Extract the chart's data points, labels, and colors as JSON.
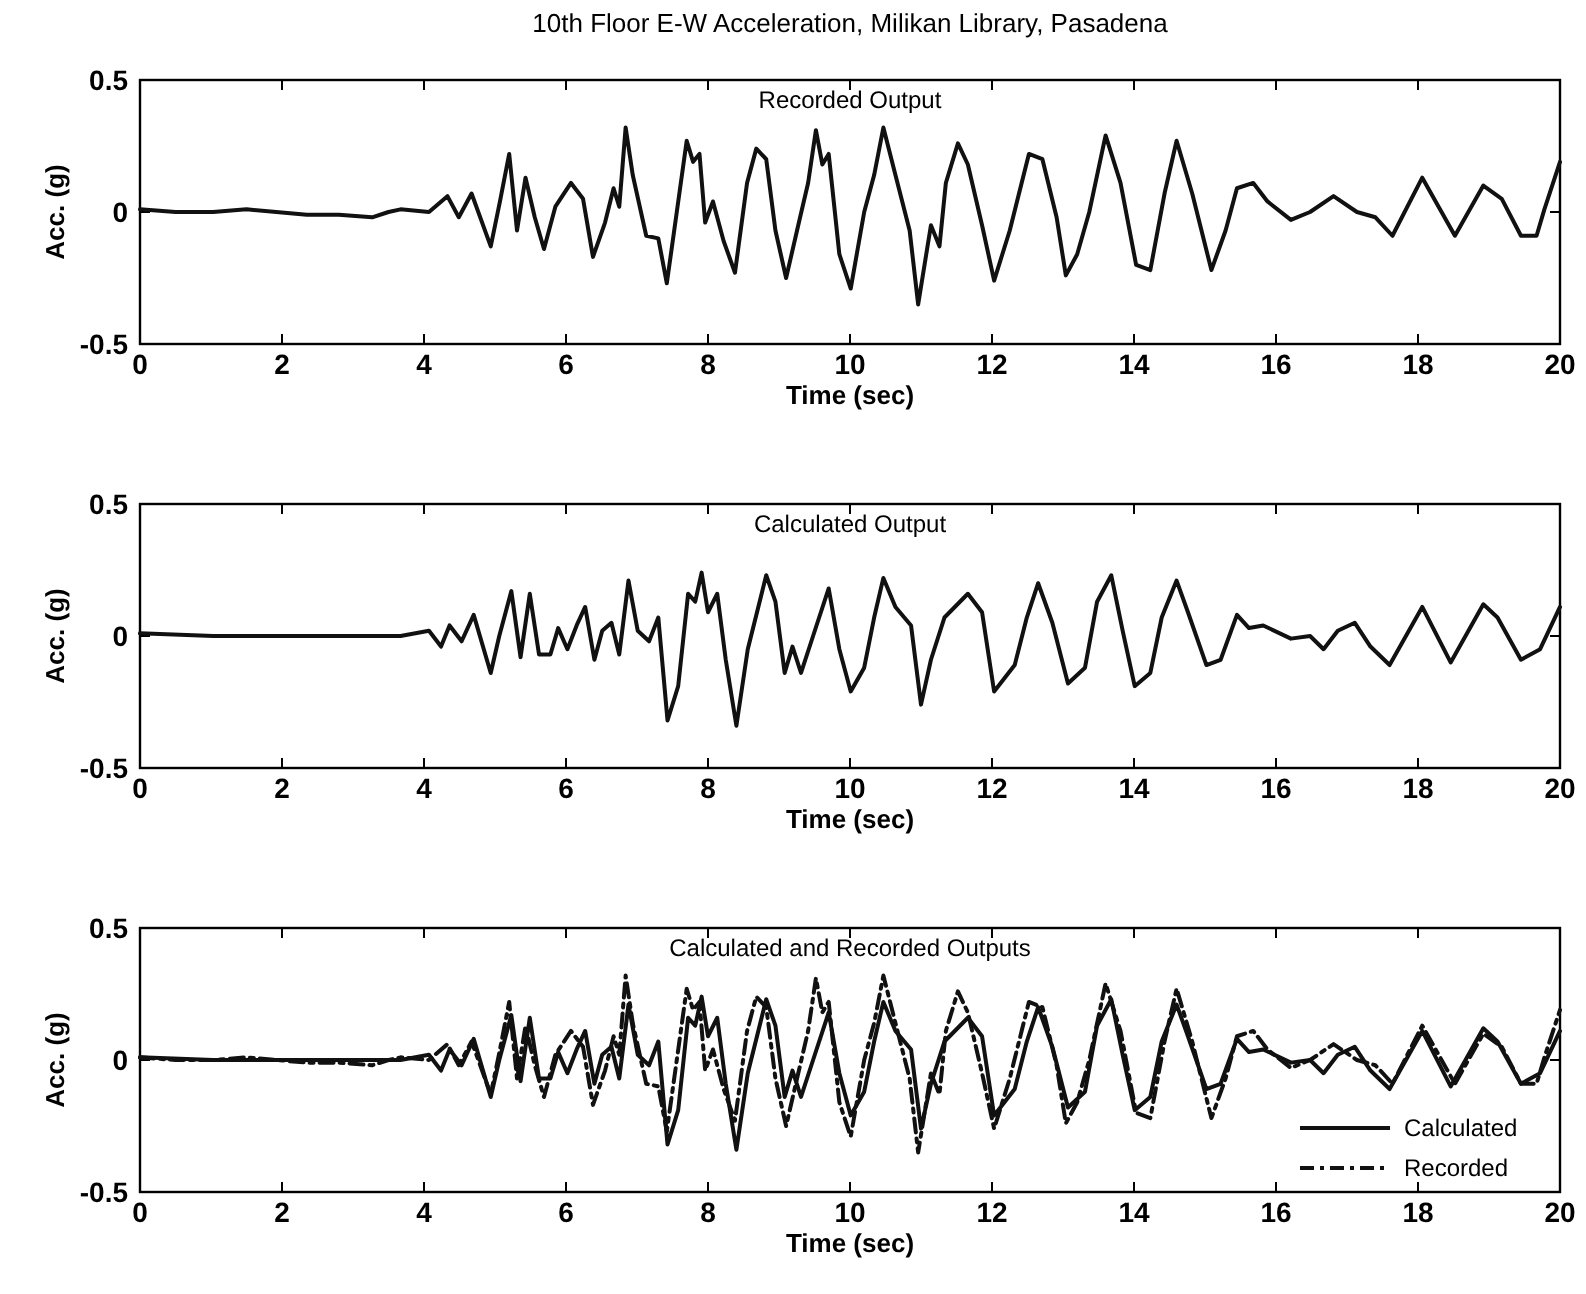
{
  "chart_data": [
    {
      "type": "line",
      "title": "10th Floor E-W Acceleration, Milikan Library, Pasadena",
      "subtitle": "Recorded Output",
      "xlabel": "Time (sec)",
      "ylabel": "Acc. (g)",
      "xlim": [
        0,
        20
      ],
      "ylim": [
        -0.5,
        0.5
      ],
      "xticks": [
        0,
        2,
        4,
        6,
        8,
        10,
        12,
        14,
        16,
        18,
        20
      ],
      "yticks": [
        -0.5,
        0,
        0.5
      ],
      "grid": false,
      "legend": false,
      "marker": "none",
      "series": [
        {
          "color": "#111111",
          "line_style": "solid",
          "x": [
            0,
            0.5,
            1.03,
            1.5,
            2.35,
            2.8,
            3.27,
            3.5,
            3.67,
            4.07,
            4.33,
            4.49,
            4.67,
            4.94,
            5.07,
            5.2,
            5.31,
            5.43,
            5.56,
            5.69,
            5.85,
            6.07,
            6.24,
            6.38,
            6.55,
            6.67,
            6.75,
            6.84,
            6.94,
            7.13,
            7.3,
            7.42,
            7.55,
            7.7,
            7.79,
            7.88,
            7.96,
            8.07,
            8.22,
            8.38,
            8.55,
            8.68,
            8.82,
            8.95,
            9.1,
            9.28,
            9.41,
            9.52,
            9.61,
            9.7,
            9.85,
            10.01,
            10.2,
            10.34,
            10.47,
            10.64,
            10.84,
            10.96,
            11.14,
            11.26,
            11.35,
            11.52,
            11.66,
            11.86,
            12.03,
            12.25,
            12.52,
            12.71,
            12.91,
            13.04,
            13.2,
            13.37,
            13.6,
            13.81,
            14.03,
            14.23,
            14.43,
            14.6,
            14.82,
            15.09,
            15.29,
            15.45,
            15.68,
            15.88,
            16.21,
            16.48,
            16.81,
            17.14,
            17.4,
            17.64,
            18.06,
            18.52,
            18.92,
            19.18,
            19.45,
            19.67,
            19.78,
            20
          ],
          "values": [
            0.01,
            0,
            0,
            0.01,
            -0.01,
            -0.01,
            -0.02,
            0,
            0.01,
            0,
            0.06,
            -0.02,
            0.07,
            -0.13,
            0.04,
            0.22,
            -0.07,
            0.13,
            -0.02,
            -0.14,
            0.02,
            0.11,
            0.05,
            -0.17,
            -0.04,
            0.09,
            0.02,
            0.32,
            0.14,
            -0.09,
            -0.1,
            -0.27,
            -0.02,
            0.27,
            0.19,
            0.22,
            -0.04,
            0.04,
            -0.11,
            -0.23,
            0.11,
            0.24,
            0.2,
            -0.07,
            -0.25,
            -0.04,
            0.11,
            0.31,
            0.18,
            0.22,
            -0.16,
            -0.29,
            0,
            0.14,
            0.32,
            0.14,
            -0.07,
            -0.35,
            -0.05,
            -0.13,
            0.11,
            0.26,
            0.18,
            -0.05,
            -0.26,
            -0.07,
            0.22,
            0.2,
            -0.02,
            -0.24,
            -0.16,
            0,
            0.29,
            0.11,
            -0.2,
            -0.22,
            0.07,
            0.27,
            0.07,
            -0.22,
            -0.07,
            0.09,
            0.11,
            0.04,
            -0.03,
            0,
            0.06,
            0,
            -0.02,
            -0.09,
            0.13,
            -0.09,
            0.1,
            0.05,
            -0.09,
            -0.09,
            0.01,
            0.19
          ]
        }
      ]
    },
    {
      "type": "line",
      "subtitle": "Calculated Output",
      "xlabel": "Time (sec)",
      "ylabel": "Acc. (g)",
      "xlim": [
        0,
        20
      ],
      "ylim": [
        -0.5,
        0.5
      ],
      "xticks": [
        0,
        2,
        4,
        6,
        8,
        10,
        12,
        14,
        16,
        18,
        20
      ],
      "yticks": [
        -0.5,
        0,
        0.5
      ],
      "grid": false,
      "legend": false,
      "marker": "none",
      "series": [
        {
          "color": "#111111",
          "line_style": "solid",
          "x": [
            0,
            1.03,
            2.35,
            3.67,
            4.07,
            4.24,
            4.36,
            4.53,
            4.7,
            4.94,
            5.06,
            5.23,
            5.36,
            5.49,
            5.62,
            5.78,
            5.89,
            6.02,
            6.15,
            6.27,
            6.4,
            6.51,
            6.64,
            6.75,
            6.88,
            7.01,
            7.17,
            7.3,
            7.43,
            7.58,
            7.72,
            7.82,
            7.91,
            8,
            8.13,
            8.25,
            8.4,
            8.56,
            8.82,
            8.95,
            9.08,
            9.19,
            9.31,
            9.48,
            9.7,
            9.85,
            10.01,
            10.2,
            10.34,
            10.47,
            10.64,
            10.86,
            11,
            11.14,
            11.33,
            11.66,
            11.86,
            12.03,
            12.32,
            12.49,
            12.65,
            12.85,
            13.07,
            13.31,
            13.48,
            13.68,
            13.84,
            14.01,
            14.23,
            14.39,
            14.6,
            14.76,
            15.02,
            15.22,
            15.45,
            15.62,
            15.82,
            16.21,
            16.48,
            16.67,
            16.87,
            17.11,
            17.33,
            17.6,
            18.06,
            18.46,
            18.92,
            19.12,
            19.45,
            19.72,
            20
          ],
          "values": [
            0.01,
            0,
            0,
            0,
            0.02,
            -0.04,
            0.04,
            -0.02,
            0.08,
            -0.14,
            0,
            0.17,
            -0.08,
            0.16,
            -0.07,
            -0.07,
            0.03,
            -0.05,
            0.04,
            0.11,
            -0.09,
            0.02,
            0.05,
            -0.07,
            0.21,
            0.02,
            -0.02,
            0.07,
            -0.32,
            -0.19,
            0.16,
            0.13,
            0.24,
            0.09,
            0.16,
            -0.09,
            -0.34,
            -0.05,
            0.23,
            0.13,
            -0.14,
            -0.04,
            -0.14,
            0,
            0.18,
            -0.05,
            -0.21,
            -0.12,
            0.07,
            0.22,
            0.11,
            0.04,
            -0.26,
            -0.09,
            0.07,
            0.16,
            0.09,
            -0.21,
            -0.11,
            0.07,
            0.2,
            0.05,
            -0.18,
            -0.12,
            0.13,
            0.23,
            0.02,
            -0.19,
            -0.14,
            0.07,
            0.21,
            0.09,
            -0.11,
            -0.09,
            0.08,
            0.03,
            0.04,
            -0.01,
            0,
            -0.05,
            0.02,
            0.05,
            -0.04,
            -0.11,
            0.11,
            -0.1,
            0.12,
            0.07,
            -0.09,
            -0.05,
            0.11
          ]
        }
      ]
    },
    {
      "type": "line",
      "subtitle": "Calculated and Recorded Outputs",
      "xlabel": "Time (sec)",
      "ylabel": "Acc. (g)",
      "xlim": [
        0,
        20
      ],
      "ylim": [
        -0.5,
        0.5
      ],
      "xticks": [
        0,
        2,
        4,
        6,
        8,
        10,
        12,
        14,
        16,
        18,
        20
      ],
      "yticks": [
        -0.5,
        0,
        0.5
      ],
      "grid": false,
      "legend": "bottom right",
      "marker": "none",
      "series": [
        {
          "name": "Calculated",
          "color": "#111111",
          "line_style": "solid",
          "x": [
            0,
            1.03,
            2.35,
            3.67,
            4.07,
            4.24,
            4.36,
            4.53,
            4.7,
            4.94,
            5.06,
            5.23,
            5.36,
            5.49,
            5.62,
            5.78,
            5.89,
            6.02,
            6.15,
            6.27,
            6.4,
            6.51,
            6.64,
            6.75,
            6.88,
            7.01,
            7.17,
            7.3,
            7.43,
            7.58,
            7.72,
            7.82,
            7.91,
            8,
            8.13,
            8.25,
            8.4,
            8.56,
            8.82,
            8.95,
            9.08,
            9.19,
            9.31,
            9.48,
            9.7,
            9.85,
            10.01,
            10.2,
            10.34,
            10.47,
            10.64,
            10.86,
            11,
            11.14,
            11.33,
            11.66,
            11.86,
            12.03,
            12.32,
            12.49,
            12.65,
            12.85,
            13.07,
            13.31,
            13.48,
            13.68,
            13.84,
            14.01,
            14.23,
            14.39,
            14.6,
            14.76,
            15.02,
            15.22,
            15.45,
            15.62,
            15.82,
            16.21,
            16.48,
            16.67,
            16.87,
            17.11,
            17.33,
            17.6,
            18.06,
            18.46,
            18.92,
            19.12,
            19.45,
            19.72,
            20
          ],
          "values": [
            0.01,
            0,
            0,
            0,
            0.02,
            -0.04,
            0.04,
            -0.02,
            0.08,
            -0.14,
            0,
            0.17,
            -0.08,
            0.16,
            -0.07,
            -0.07,
            0.03,
            -0.05,
            0.04,
            0.11,
            -0.09,
            0.02,
            0.05,
            -0.07,
            0.21,
            0.02,
            -0.02,
            0.07,
            -0.32,
            -0.19,
            0.16,
            0.13,
            0.24,
            0.09,
            0.16,
            -0.09,
            -0.34,
            -0.05,
            0.23,
            0.13,
            -0.14,
            -0.04,
            -0.14,
            0,
            0.18,
            -0.05,
            -0.21,
            -0.12,
            0.07,
            0.22,
            0.11,
            0.04,
            -0.26,
            -0.09,
            0.07,
            0.16,
            0.09,
            -0.21,
            -0.11,
            0.07,
            0.2,
            0.05,
            -0.18,
            -0.12,
            0.13,
            0.23,
            0.02,
            -0.19,
            -0.14,
            0.07,
            0.21,
            0.09,
            -0.11,
            -0.09,
            0.08,
            0.03,
            0.04,
            -0.01,
            0,
            -0.05,
            0.02,
            0.05,
            -0.04,
            -0.11,
            0.11,
            -0.1,
            0.12,
            0.07,
            -0.09,
            -0.05,
            0.11
          ]
        },
        {
          "name": "Recorded",
          "color": "#111111",
          "line_style": "dashed",
          "x": [
            0,
            0.5,
            1.03,
            1.5,
            2.35,
            2.8,
            3.27,
            3.5,
            3.67,
            4.07,
            4.33,
            4.49,
            4.67,
            4.94,
            5.07,
            5.2,
            5.31,
            5.43,
            5.56,
            5.69,
            5.85,
            6.07,
            6.24,
            6.38,
            6.55,
            6.67,
            6.75,
            6.84,
            6.94,
            7.13,
            7.3,
            7.42,
            7.55,
            7.7,
            7.79,
            7.88,
            7.96,
            8.07,
            8.22,
            8.38,
            8.55,
            8.68,
            8.82,
            8.95,
            9.1,
            9.28,
            9.41,
            9.52,
            9.61,
            9.7,
            9.85,
            10.01,
            10.2,
            10.34,
            10.47,
            10.64,
            10.84,
            10.96,
            11.14,
            11.26,
            11.35,
            11.52,
            11.66,
            11.86,
            12.03,
            12.25,
            12.52,
            12.71,
            12.91,
            13.04,
            13.2,
            13.37,
            13.6,
            13.81,
            14.03,
            14.23,
            14.43,
            14.6,
            14.82,
            15.09,
            15.29,
            15.45,
            15.68,
            15.88,
            16.21,
            16.48,
            16.81,
            17.14,
            17.4,
            17.64,
            18.06,
            18.52,
            18.92,
            19.18,
            19.45,
            19.67,
            19.78,
            20
          ],
          "values": [
            0.01,
            0,
            0,
            0.01,
            -0.01,
            -0.01,
            -0.02,
            0,
            0.01,
            0,
            0.06,
            -0.02,
            0.07,
            -0.13,
            0.04,
            0.22,
            -0.07,
            0.13,
            -0.02,
            -0.14,
            0.02,
            0.11,
            0.05,
            -0.17,
            -0.04,
            0.09,
            0.02,
            0.32,
            0.14,
            -0.09,
            -0.1,
            -0.27,
            -0.02,
            0.27,
            0.19,
            0.22,
            -0.04,
            0.04,
            -0.11,
            -0.23,
            0.11,
            0.24,
            0.2,
            -0.07,
            -0.25,
            -0.04,
            0.11,
            0.31,
            0.18,
            0.22,
            -0.16,
            -0.29,
            0,
            0.14,
            0.32,
            0.14,
            -0.07,
            -0.35,
            -0.05,
            -0.13,
            0.11,
            0.26,
            0.18,
            -0.05,
            -0.26,
            -0.07,
            0.22,
            0.2,
            -0.02,
            -0.24,
            -0.16,
            0,
            0.29,
            0.11,
            -0.2,
            -0.22,
            0.07,
            0.27,
            0.07,
            -0.22,
            -0.07,
            0.09,
            0.11,
            0.04,
            -0.03,
            0,
            0.06,
            0,
            -0.02,
            -0.09,
            0.13,
            -0.09,
            0.1,
            0.05,
            -0.09,
            -0.09,
            0.01,
            0.19
          ]
        }
      ]
    }
  ]
}
